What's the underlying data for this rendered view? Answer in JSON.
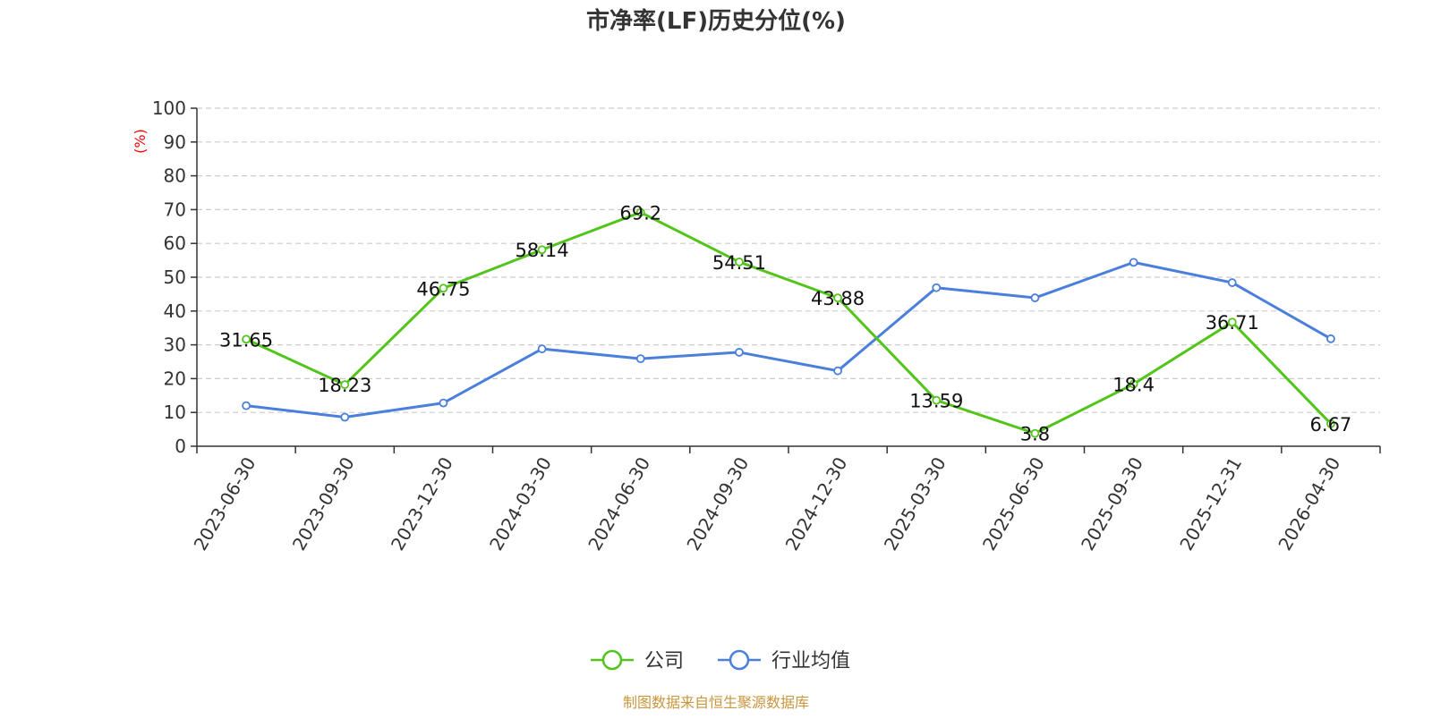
{
  "chart_data": {
    "type": "line",
    "title": "市净率(LF)历史分位(%)",
    "ylabel": "(%)",
    "ylim": [
      0,
      100
    ],
    "yticks": [
      0,
      10,
      20,
      30,
      40,
      50,
      60,
      70,
      80,
      90,
      100
    ],
    "categories": [
      "2023-06-30",
      "2023-09-30",
      "2023-12-30",
      "2024-03-30",
      "2024-06-30",
      "2024-09-30",
      "2024-12-30",
      "2025-03-30",
      "2025-06-30",
      "2025-09-30",
      "2025-12-31",
      "2026-04-30"
    ],
    "series": [
      {
        "name": "公司",
        "color": "#52c41a",
        "values": [
          31.65,
          18.23,
          46.75,
          58.14,
          69.2,
          54.51,
          43.88,
          13.59,
          3.8,
          18.4,
          36.71,
          6.67
        ],
        "labels": [
          "31.65",
          "18.23",
          "46.75",
          "58.14",
          "69.2",
          "54.51",
          "43.88",
          "13.59",
          "3.8",
          "18.4",
          "36.71",
          "6.67"
        ]
      },
      {
        "name": "行业均值",
        "color": "#4a7fdc",
        "values": [
          12.0,
          8.6,
          12.8,
          28.8,
          25.9,
          27.8,
          22.3,
          46.9,
          43.9,
          54.4,
          48.4,
          31.8
        ]
      }
    ],
    "grid": true,
    "legend": "bottom-center",
    "source": "制图数据来自恒生聚源数据库",
    "colors": {
      "axis": "#333333",
      "grid": "#cccccc",
      "unit": "#ff0000",
      "source": "#c8963e"
    }
  }
}
